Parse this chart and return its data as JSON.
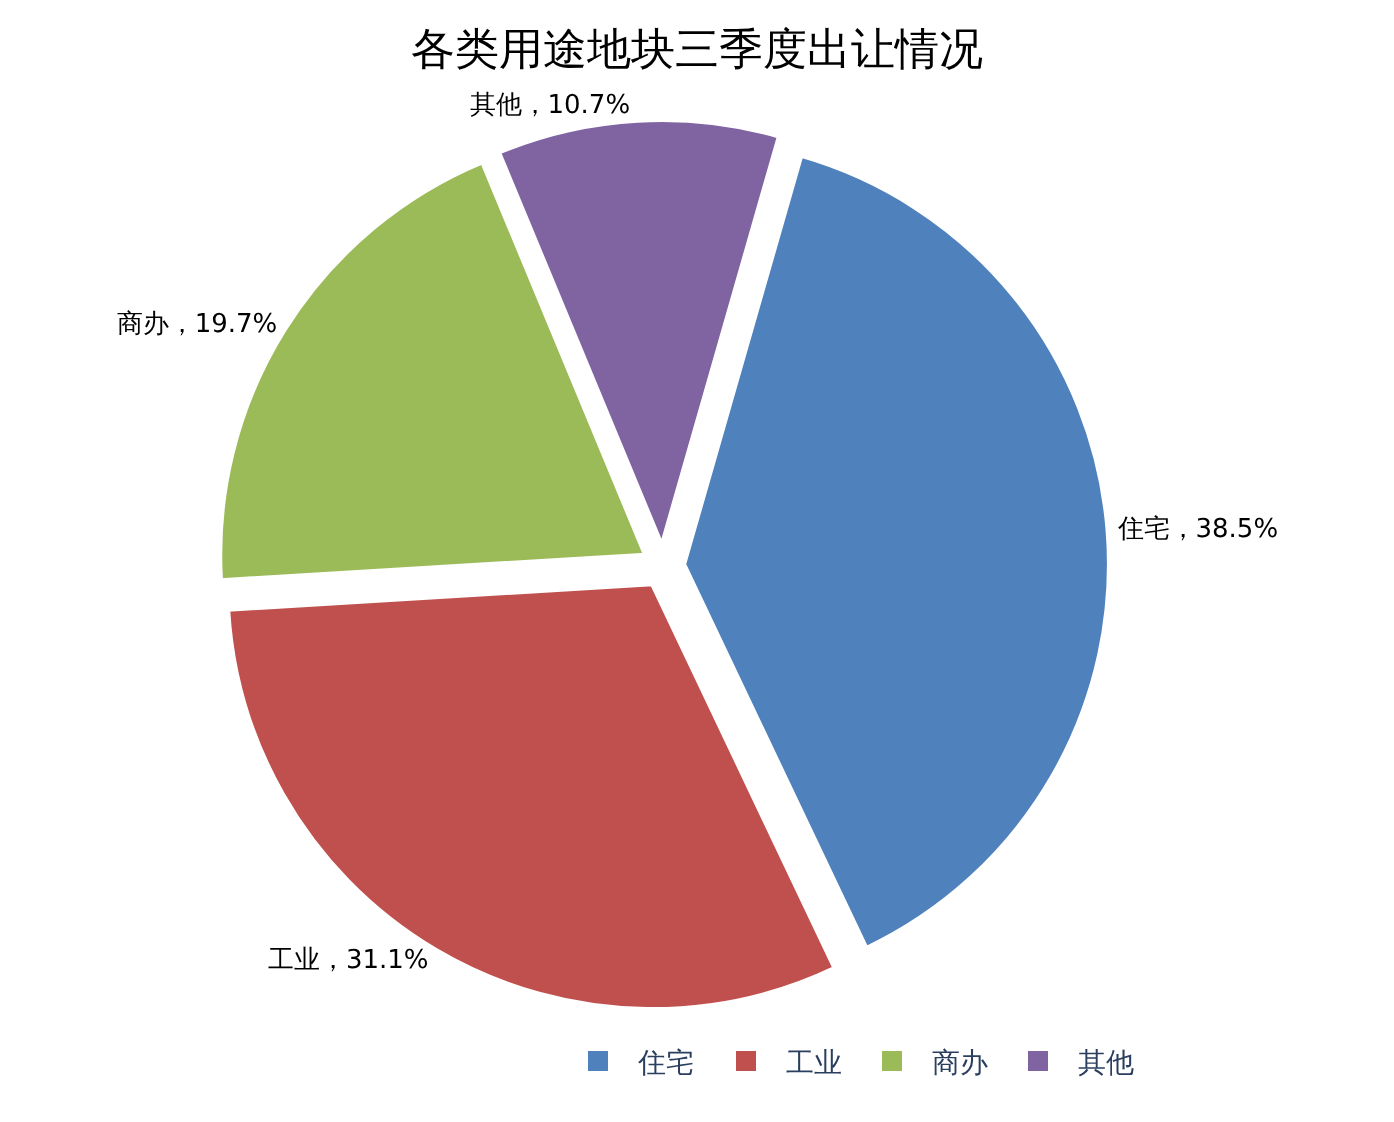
{
  "chart_data": {
    "type": "pie",
    "title": "各类用途地块三季度出让情况",
    "categories": [
      "住宅",
      "工业",
      "商办",
      "其他"
    ],
    "values": [
      38.5,
      31.1,
      19.7,
      10.7
    ],
    "colors": [
      "#4f81bd",
      "#c0504d",
      "#9bbb59",
      "#8064a2"
    ],
    "value_labels": [
      "住宅，38.5%",
      "工业，31.1%",
      "商办，19.7%",
      "其他，10.7%"
    ],
    "legend": "bottom right"
  }
}
